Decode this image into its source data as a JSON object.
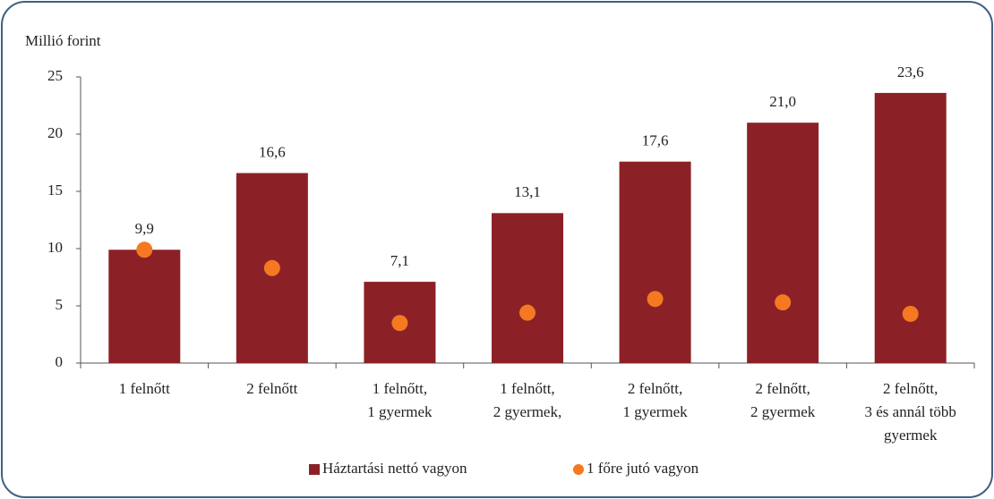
{
  "chart_data": {
    "type": "bar",
    "y_axis_label": "Millió forint",
    "categories": [
      [
        "1 felnőtt"
      ],
      [
        "2 felnőtt"
      ],
      [
        "1 felnőtt,",
        "1 gyermek"
      ],
      [
        "1 felnőtt,",
        "2 gyermek,"
      ],
      [
        "2 felnőtt,",
        "1 gyermek"
      ],
      [
        "2 felnőtt,",
        "2 gyermek"
      ],
      [
        "2 felnőtt,",
        "3 és annál több",
        "gyermek"
      ]
    ],
    "series": [
      {
        "name": "Háztartási nettó vagyon",
        "type": "bar",
        "color": "#8b2126",
        "values": [
          9.9,
          16.6,
          7.1,
          13.1,
          17.6,
          21.0,
          23.6
        ],
        "value_labels": [
          "9,9",
          "16,6",
          "7,1",
          "13,1",
          "17,6",
          "21,0",
          "23,6"
        ]
      },
      {
        "name": "1 főre jutó vagyon",
        "type": "scatter",
        "color": "#f47920",
        "values": [
          9.9,
          8.3,
          3.5,
          4.4,
          5.6,
          5.3,
          4.3
        ]
      }
    ],
    "ylim": [
      0,
      25
    ],
    "yticks": [
      0,
      5,
      10,
      15,
      20,
      25
    ],
    "legend": "bottom"
  }
}
